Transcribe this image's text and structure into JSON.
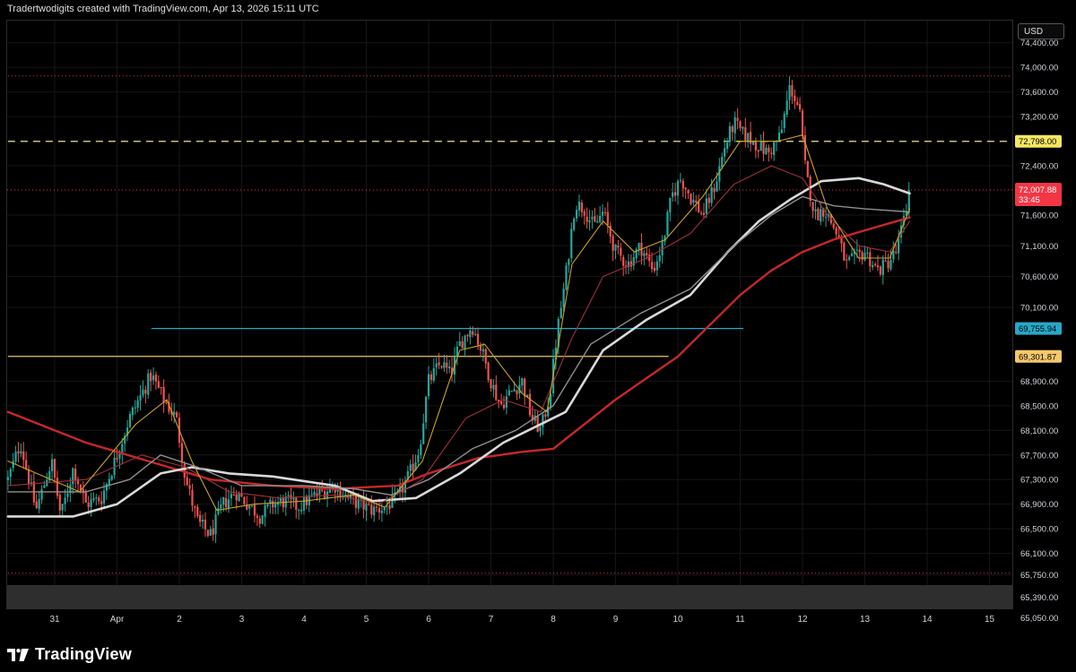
{
  "header": {
    "title": "Tradertwodigits created with TradingView.com, Apr 13, 2026 15:11 UTC"
  },
  "toolbar": {
    "currency_label": "USD"
  },
  "footer": {
    "brand": "TradingView"
  },
  "colors": {
    "bullish": "#26a69a",
    "bearish": "#ef5350",
    "ma_fast": "#c9a227",
    "ma_mid": "#a0303a",
    "ma_white_1": "#d9d9d9",
    "ma_white_2": "#9e9e9e",
    "ma_slow": "#c62828",
    "hline_blue": "#26a8c9",
    "hline_yellow": "#e8c46a",
    "hline_dashed": "#f0e68c",
    "price_red": "#f23645"
  },
  "chart_data": {
    "type": "candlestick",
    "y_range": [
      64900,
      74600
    ],
    "y_ticks": [
      "74,400.00",
      "74,000.00",
      "73,600.00",
      "73,200.00",
      "72,400.00",
      "71,600.00",
      "71,100.00",
      "70,600.00",
      "70,100.00",
      "68,900.00",
      "68,500.00",
      "68,100.00",
      "67,700.00",
      "67,300.00",
      "66,900.00",
      "66,500.00",
      "66,100.00",
      "65,750.00",
      "65,390.00",
      "65,050.00"
    ],
    "x_ticks": [
      {
        "label": "31",
        "day": 0
      },
      {
        "label": "Apr",
        "day": 1
      },
      {
        "label": "2",
        "day": 2
      },
      {
        "label": "3",
        "day": 3
      },
      {
        "label": "4",
        "day": 4
      },
      {
        "label": "5",
        "day": 5
      },
      {
        "label": "6",
        "day": 6
      },
      {
        "label": "7",
        "day": 7
      },
      {
        "label": "8",
        "day": 8
      },
      {
        "label": "9",
        "day": 9
      },
      {
        "label": "10",
        "day": 10
      },
      {
        "label": "11",
        "day": 11
      },
      {
        "label": "12",
        "day": 12
      },
      {
        "label": "13",
        "day": 13
      },
      {
        "label": "14",
        "day": 14
      },
      {
        "label": "15",
        "day": 15
      }
    ],
    "x_range_days": [
      -0.75,
      15.5
    ],
    "horizontal_lines": [
      {
        "price": 72798,
        "label": "72,798.00",
        "style": "dashed",
        "color": "#f0e68c",
        "from_day": -0.75,
        "to_day": 15.5,
        "label_bg": "#f5e663",
        "label_color": "#000000"
      },
      {
        "price": 69755.94,
        "label": "69,755.94",
        "style": "solid",
        "color": "#26a8c9",
        "from_day": 1.55,
        "to_day": 11.05,
        "label_bg": "#26a8c9",
        "label_color": "#000000"
      },
      {
        "price": 69301.87,
        "label": "69,301.87",
        "style": "solid",
        "color": "#e8c46a",
        "from_day": -0.75,
        "to_day": 9.85,
        "label_bg": "#f5c86a",
        "label_color": "#000000"
      },
      {
        "price": 73860,
        "label": "",
        "style": "dotted",
        "color": "#f23645",
        "from_day": -0.75,
        "to_day": 15.5
      },
      {
        "price": 65780,
        "label": "",
        "style": "dotted",
        "color": "#f23645",
        "from_day": -0.75,
        "to_day": 15.5
      }
    ],
    "current_price": {
      "price": 72007.88,
      "label": "72,007.88",
      "countdown": "33:45",
      "color": "#f23645"
    },
    "candle_path": [
      [
        -0.75,
        67300
      ],
      [
        -0.55,
        67900
      ],
      [
        -0.3,
        66800
      ],
      [
        -0.05,
        67600
      ],
      [
        0.1,
        66700
      ],
      [
        0.3,
        67500
      ],
      [
        0.5,
        66900
      ],
      [
        0.75,
        67000
      ],
      [
        1.0,
        67700
      ],
      [
        1.2,
        68300
      ],
      [
        1.4,
        68700
      ],
      [
        1.55,
        69000
      ],
      [
        1.75,
        68600
      ],
      [
        1.95,
        68300
      ],
      [
        2.1,
        67300
      ],
      [
        2.3,
        66600
      ],
      [
        2.5,
        66400
      ],
      [
        2.7,
        66900
      ],
      [
        2.9,
        67100
      ],
      [
        3.1,
        66900
      ],
      [
        3.3,
        66700
      ],
      [
        3.5,
        66900
      ],
      [
        3.7,
        66950
      ],
      [
        3.9,
        66850
      ],
      [
        4.1,
        67000
      ],
      [
        4.3,
        67100
      ],
      [
        4.5,
        67200
      ],
      [
        4.7,
        67000
      ],
      [
        4.9,
        66900
      ],
      [
        5.1,
        66800
      ],
      [
        5.3,
        66850
      ],
      [
        5.5,
        67000
      ],
      [
        5.7,
        67400
      ],
      [
        5.85,
        67800
      ],
      [
        6.0,
        68900
      ],
      [
        6.2,
        69200
      ],
      [
        6.35,
        69000
      ],
      [
        6.5,
        69500
      ],
      [
        6.7,
        69800
      ],
      [
        6.85,
        69400
      ],
      [
        7.0,
        68900
      ],
      [
        7.15,
        68500
      ],
      [
        7.3,
        68700
      ],
      [
        7.5,
        68900
      ],
      [
        7.65,
        68300
      ],
      [
        7.8,
        68100
      ],
      [
        7.95,
        68700
      ],
      [
        8.05,
        69600
      ],
      [
        8.2,
        70600
      ],
      [
        8.35,
        71800
      ],
      [
        8.5,
        71700
      ],
      [
        8.65,
        71400
      ],
      [
        8.8,
        71650
      ],
      [
        9.0,
        71000
      ],
      [
        9.2,
        70800
      ],
      [
        9.4,
        71100
      ],
      [
        9.6,
        70700
      ],
      [
        9.75,
        71100
      ],
      [
        9.9,
        71900
      ],
      [
        10.05,
        72200
      ],
      [
        10.2,
        71900
      ],
      [
        10.4,
        71600
      ],
      [
        10.6,
        72100
      ],
      [
        10.75,
        72700
      ],
      [
        10.9,
        73100
      ],
      [
        11.05,
        72900
      ],
      [
        11.2,
        72800
      ],
      [
        11.45,
        72600
      ],
      [
        11.65,
        72900
      ],
      [
        11.8,
        73700
      ],
      [
        11.95,
        73300
      ],
      [
        12.05,
        72300
      ],
      [
        12.2,
        71600
      ],
      [
        12.35,
        71700
      ],
      [
        12.55,
        71300
      ],
      [
        12.7,
        70800
      ],
      [
        12.85,
        70900
      ],
      [
        13.0,
        71000
      ],
      [
        13.2,
        70700
      ],
      [
        13.35,
        70800
      ],
      [
        13.5,
        71000
      ],
      [
        13.65,
        71600
      ],
      [
        13.72,
        72007.88
      ]
    ],
    "moving_averages": [
      {
        "name": "",
        "color": "#c62828",
        "width": 2.4,
        "points": [
          [
            -0.75,
            68400
          ],
          [
            0.5,
            67900
          ],
          [
            1.5,
            67600
          ],
          [
            2.5,
            67300
          ],
          [
            3.5,
            67200
          ],
          [
            4.5,
            67150
          ],
          [
            5.5,
            67200
          ],
          [
            6.0,
            67400
          ],
          [
            6.8,
            67650
          ],
          [
            7.5,
            67750
          ],
          [
            8.0,
            67800
          ],
          [
            8.5,
            68200
          ],
          [
            9.0,
            68600
          ],
          [
            10.0,
            69300
          ],
          [
            11.0,
            70300
          ],
          [
            11.5,
            70700
          ],
          [
            12.0,
            71000
          ],
          [
            12.5,
            71200
          ],
          [
            13.0,
            71350
          ],
          [
            13.72,
            71560
          ]
        ]
      },
      {
        "name": "",
        "color": "#d9d9d9",
        "width": 2.6,
        "points": [
          [
            -0.75,
            66700
          ],
          [
            0.3,
            66700
          ],
          [
            1.0,
            66900
          ],
          [
            1.7,
            67400
          ],
          [
            2.2,
            67500
          ],
          [
            2.8,
            67400
          ],
          [
            3.5,
            67350
          ],
          [
            4.5,
            67200
          ],
          [
            5.1,
            66950
          ],
          [
            5.8,
            67000
          ],
          [
            6.5,
            67400
          ],
          [
            7.2,
            67900
          ],
          [
            7.8,
            68200
          ],
          [
            8.2,
            68400
          ],
          [
            8.8,
            69400
          ],
          [
            9.5,
            69900
          ],
          [
            10.2,
            70300
          ],
          [
            10.8,
            71000
          ],
          [
            11.3,
            71500
          ],
          [
            11.8,
            71850
          ],
          [
            12.3,
            72150
          ],
          [
            12.9,
            72200
          ],
          [
            13.3,
            72100
          ],
          [
            13.72,
            71950
          ]
        ]
      },
      {
        "name": "",
        "color": "#8f8f8f",
        "width": 1.4,
        "points": [
          [
            -0.75,
            67100
          ],
          [
            0.5,
            67100
          ],
          [
            1.2,
            67300
          ],
          [
            1.7,
            67700
          ],
          [
            2.3,
            67500
          ],
          [
            3.0,
            67200
          ],
          [
            4.0,
            67200
          ],
          [
            4.8,
            67150
          ],
          [
            5.4,
            67050
          ],
          [
            6.0,
            67300
          ],
          [
            6.7,
            67800
          ],
          [
            7.4,
            68100
          ],
          [
            8.0,
            68500
          ],
          [
            8.6,
            69500
          ],
          [
            9.4,
            70000
          ],
          [
            10.2,
            70400
          ],
          [
            10.9,
            71100
          ],
          [
            11.5,
            71600
          ],
          [
            12.0,
            71900
          ],
          [
            12.5,
            71750
          ],
          [
            13.0,
            71700
          ],
          [
            13.72,
            71650
          ]
        ]
      },
      {
        "name": "",
        "color": "#a0303a",
        "width": 1.1,
        "points": [
          [
            -0.75,
            67200
          ],
          [
            0.5,
            67300
          ],
          [
            1.4,
            67700
          ],
          [
            2.1,
            67500
          ],
          [
            2.8,
            67100
          ],
          [
            3.6,
            67000
          ],
          [
            4.5,
            67050
          ],
          [
            5.2,
            66900
          ],
          [
            5.9,
            67300
          ],
          [
            6.6,
            68300
          ],
          [
            7.2,
            68600
          ],
          [
            7.8,
            68400
          ],
          [
            8.3,
            69600
          ],
          [
            8.8,
            70600
          ],
          [
            9.5,
            70900
          ],
          [
            10.2,
            71300
          ],
          [
            10.9,
            72100
          ],
          [
            11.5,
            72400
          ],
          [
            12.0,
            72200
          ],
          [
            12.4,
            71600
          ],
          [
            12.9,
            71100
          ],
          [
            13.4,
            71000
          ],
          [
            13.72,
            71500
          ]
        ]
      },
      {
        "name": "",
        "color": "#c9a227",
        "width": 1.1,
        "points": [
          [
            -0.75,
            67600
          ],
          [
            0.4,
            67100
          ],
          [
            1.3,
            68200
          ],
          [
            1.8,
            68600
          ],
          [
            2.2,
            67600
          ],
          [
            2.6,
            66800
          ],
          [
            3.2,
            66900
          ],
          [
            4.0,
            66950
          ],
          [
            4.8,
            67050
          ],
          [
            5.3,
            66850
          ],
          [
            5.9,
            67600
          ],
          [
            6.5,
            69400
          ],
          [
            6.9,
            69500
          ],
          [
            7.5,
            68700
          ],
          [
            7.9,
            68400
          ],
          [
            8.3,
            70800
          ],
          [
            8.8,
            71500
          ],
          [
            9.3,
            71000
          ],
          [
            9.8,
            71200
          ],
          [
            10.4,
            71900
          ],
          [
            11.0,
            72800
          ],
          [
            11.6,
            72800
          ],
          [
            12.0,
            72900
          ],
          [
            12.4,
            71700
          ],
          [
            12.9,
            70900
          ],
          [
            13.4,
            70900
          ],
          [
            13.72,
            71700
          ]
        ]
      }
    ]
  }
}
